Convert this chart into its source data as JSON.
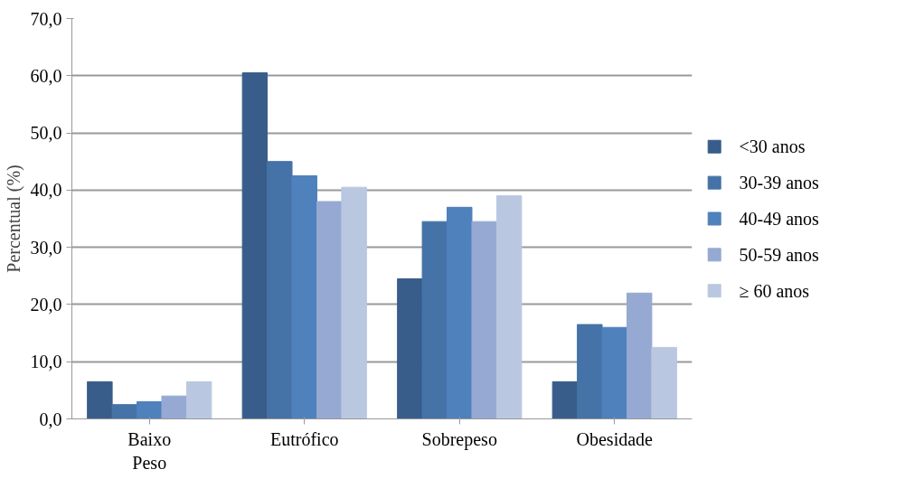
{
  "chart_data": {
    "type": "bar",
    "ylabel": "Percentual (%)",
    "categories": [
      "Baixo Peso",
      "Eutrófico",
      "Sobrepeso",
      "Obesidade"
    ],
    "series": [
      {
        "name": "<30 anos",
        "color": "#385d8a",
        "values": [
          6.5,
          60.5,
          24.5,
          6.5
        ]
      },
      {
        "name": "30-39 anos",
        "color": "#4572a7",
        "values": [
          2.5,
          45,
          34.5,
          16.5
        ]
      },
      {
        "name": "40-49 anos",
        "color": "#4f81bd",
        "values": [
          3,
          42.5,
          37,
          16
        ]
      },
      {
        "name": "50-59 anos",
        "color": "#95a9d2",
        "values": [
          4,
          38,
          34.5,
          22
        ]
      },
      {
        "name": "≥ 60 anos",
        "color": "#b9c7e1",
        "values": [
          6.5,
          40.5,
          39,
          12.5
        ]
      }
    ],
    "ylim": [
      0,
      70
    ],
    "yticks": [
      {
        "value": 0,
        "label": "0,0"
      },
      {
        "value": 10,
        "label": "10,0"
      },
      {
        "value": 20,
        "label": "20,0"
      },
      {
        "value": 30,
        "label": "30,0"
      },
      {
        "value": 40,
        "label": "40,0"
      },
      {
        "value": 50,
        "label": "50,0"
      },
      {
        "value": 60,
        "label": "60,0"
      },
      {
        "value": 70,
        "label": "70,0"
      }
    ],
    "grid": "y",
    "legend": "right"
  }
}
